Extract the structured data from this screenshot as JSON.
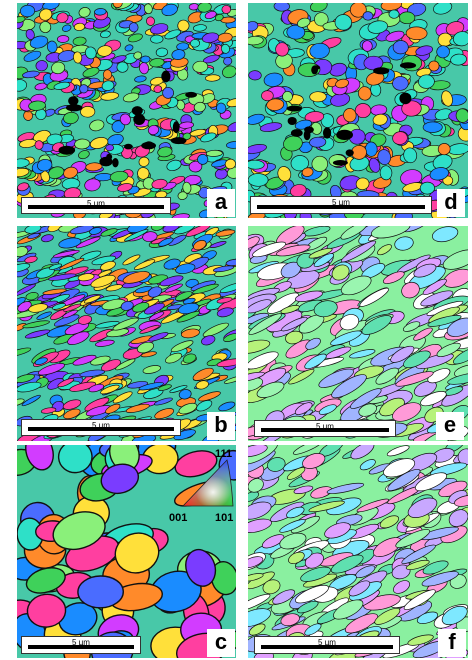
{
  "panels": [
    {
      "letter": "a",
      "scale": "5 µm"
    },
    {
      "letter": "b",
      "scale": "5 µm"
    },
    {
      "letter": "c",
      "scale": "5 µm"
    },
    {
      "letter": "d",
      "scale": "5 µm"
    },
    {
      "letter": "e",
      "scale": "5 µm"
    },
    {
      "letter": "f",
      "scale": "5 µm"
    }
  ],
  "legend": {
    "top": "111",
    "left": "001",
    "right": "101"
  },
  "colors": {
    "grain_palette": [
      "#1a8cff",
      "#3fd15a",
      "#7a3cff",
      "#2ee0c8",
      "#ff3fa0",
      "#d23cff",
      "#ffe03a",
      "#ff8a2a",
      "#8af07a",
      "#4a6cff",
      "#ffffff",
      "#000000"
    ]
  }
}
